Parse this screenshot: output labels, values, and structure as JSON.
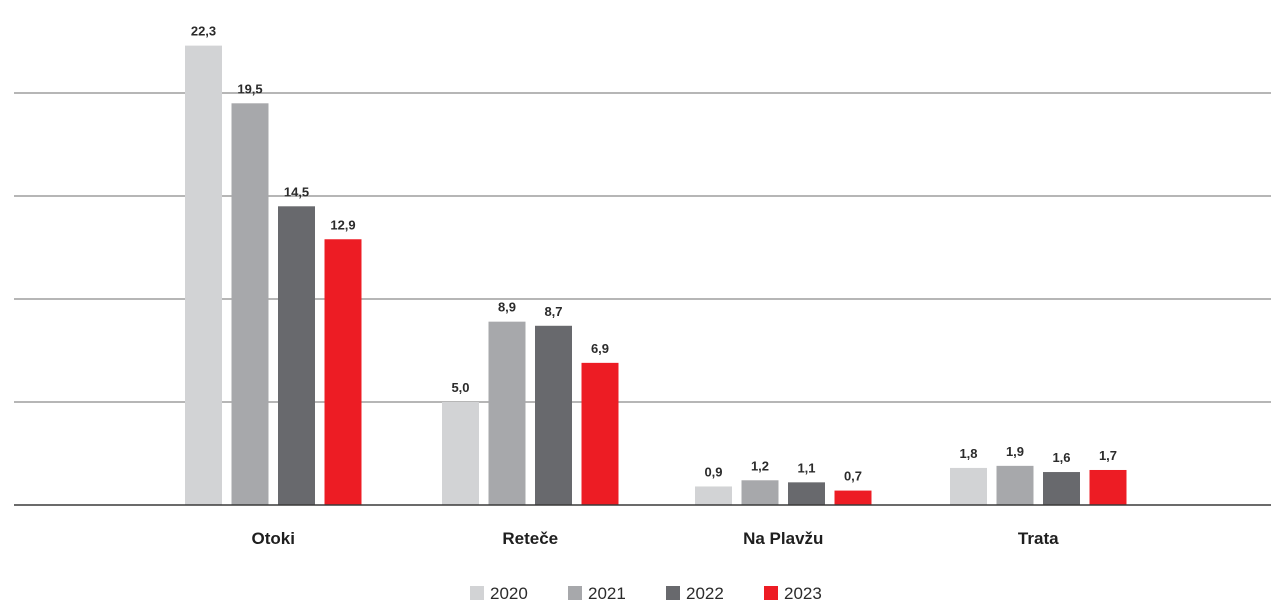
{
  "chart_data": {
    "type": "bar",
    "categories": [
      "Otoki",
      "Reteče",
      "Na Plavžu",
      "Trata"
    ],
    "series": [
      {
        "name": "2020",
        "values": [
          22.3,
          5.0,
          0.9,
          1.8
        ],
        "labels": [
          "22,3",
          "5,0",
          "0,9",
          "1,8"
        ],
        "color": "#d2d3d5"
      },
      {
        "name": "2021",
        "values": [
          19.5,
          8.9,
          1.2,
          1.9
        ],
        "labels": [
          "19,5",
          "8,9",
          "1,2",
          "1,9"
        ],
        "color": "#a7a8ab"
      },
      {
        "name": "2022",
        "values": [
          14.5,
          8.7,
          1.1,
          1.6
        ],
        "labels": [
          "14,5",
          "8,7",
          "1,1",
          "1,6"
        ],
        "color": "#68696d"
      },
      {
        "name": "2023",
        "values": [
          12.9,
          6.9,
          0.7,
          1.7
        ],
        "labels": [
          "12,9",
          "6,9",
          "0,7",
          "1,7"
        ],
        "color": "#ed1c24"
      }
    ],
    "ylim": [
      0,
      25
    ],
    "gridlines": [
      5,
      10,
      15,
      20
    ],
    "grid": true,
    "legend_position": "bottom-center",
    "title": "",
    "xlabel": "",
    "ylabel": ""
  }
}
